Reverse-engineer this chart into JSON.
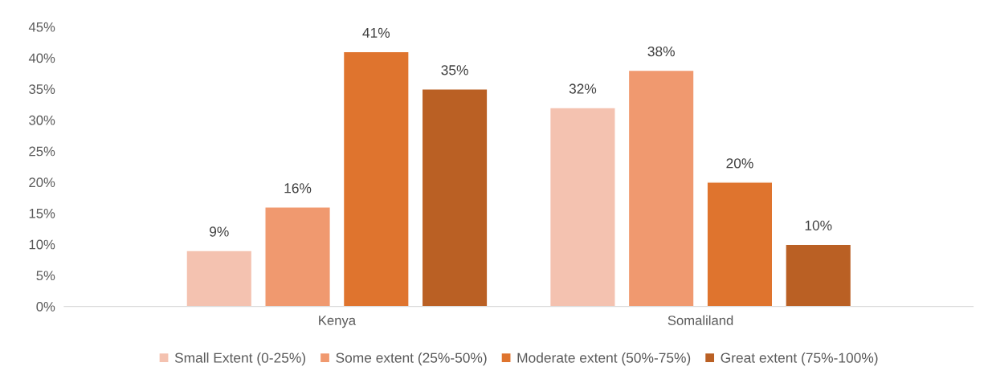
{
  "chart_data": {
    "type": "bar",
    "categories": [
      "Kenya",
      "Somaliland"
    ],
    "series": [
      {
        "name": "Small Extent (0-25%)",
        "color": "#f4c2b0",
        "values": [
          9,
          32
        ],
        "value_labels": [
          "9%",
          "32%"
        ]
      },
      {
        "name": "Some extent (25%-50%)",
        "color": "#f0996f",
        "values": [
          16,
          38
        ],
        "value_labels": [
          "16%",
          "38%"
        ]
      },
      {
        "name": "Moderate extent (50%-75%)",
        "color": "#df742e",
        "values": [
          41,
          20
        ],
        "value_labels": [
          "41%",
          "20%"
        ]
      },
      {
        "name": "Great extent (75%-100%)",
        "color": "#ba6024",
        "values": [
          35,
          10
        ],
        "value_labels": [
          "35%",
          "10%"
        ]
      }
    ],
    "ylim": [
      0,
      45
    ],
    "yticks": [
      {
        "value": 0,
        "label": "0%"
      },
      {
        "value": 5,
        "label": "5%"
      },
      {
        "value": 10,
        "label": "10%"
      },
      {
        "value": 15,
        "label": "15%"
      },
      {
        "value": 20,
        "label": "20%"
      },
      {
        "value": 25,
        "label": "25%"
      },
      {
        "value": 30,
        "label": "30%"
      },
      {
        "value": 35,
        "label": "35%"
      },
      {
        "value": 40,
        "label": "40%"
      },
      {
        "value": 45,
        "label": "45%"
      }
    ],
    "legend": "bottom"
  }
}
